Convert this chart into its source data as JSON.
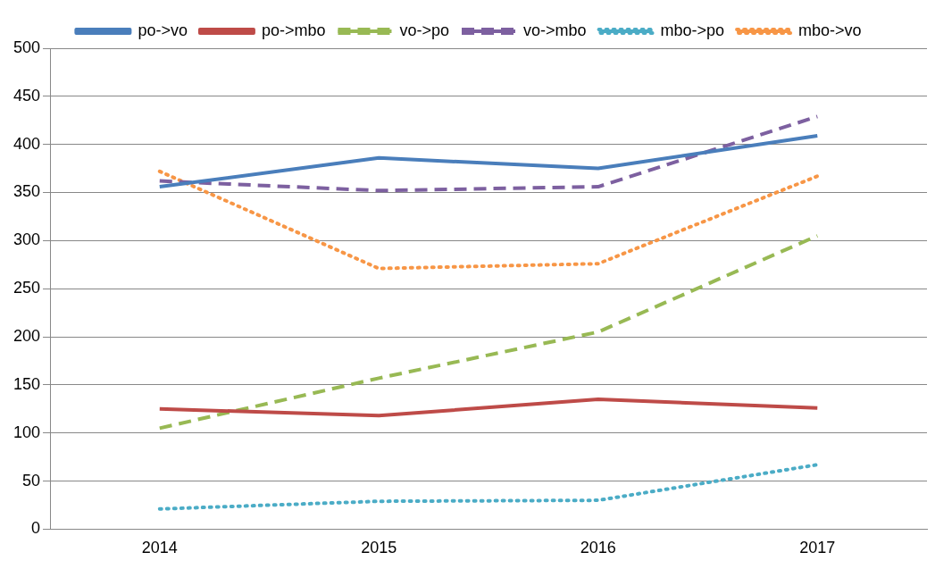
{
  "chart_data": {
    "type": "line",
    "categories": [
      "2014",
      "2015",
      "2016",
      "2017"
    ],
    "series": [
      {
        "name": "po->vo",
        "color": "#4a7ebb",
        "line_style": "solid",
        "values": [
          356,
          386,
          375,
          409
        ]
      },
      {
        "name": "po->mbo",
        "color": "#be4b48",
        "line_style": "solid",
        "values": [
          125,
          118,
          135,
          126
        ]
      },
      {
        "name": "vo->po",
        "color": "#98b954",
        "line_style": "dashed",
        "values": [
          105,
          157,
          205,
          305
        ]
      },
      {
        "name": "vo->mbo",
        "color": "#7d60a0",
        "line_style": "dashed",
        "values": [
          362,
          352,
          356,
          429
        ]
      },
      {
        "name": "mbo->po",
        "color": "#4bacc6",
        "line_style": "dotted",
        "values": [
          21,
          29,
          30,
          67
        ]
      },
      {
        "name": "mbo->vo",
        "color": "#f79646",
        "line_style": "dotted",
        "values": [
          372,
          271,
          276,
          367
        ]
      }
    ],
    "ylim": [
      0,
      500
    ],
    "yticks": [
      0,
      50,
      100,
      150,
      200,
      250,
      300,
      350,
      400,
      450,
      500
    ],
    "grid": "y",
    "legend": "top",
    "marker": "none"
  }
}
